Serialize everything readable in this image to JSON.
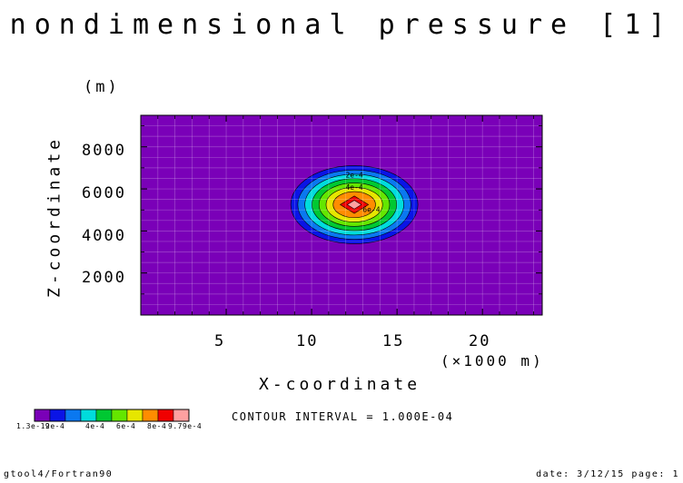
{
  "title": "nondimensional pressure [1]",
  "footer_left": "gtool4/Fortran90",
  "footer_right": "date: 3/12/15 page: 1",
  "contour_interval_text": "CONTOUR INTERVAL = 1.000E-04",
  "colorbar": {
    "labels": [
      "1.3e-19",
      "2e-4",
      "4e-4",
      "6e-4",
      "8e-4",
      "9.79e-4"
    ],
    "colors": [
      "#7a00b8",
      "#0a14e6",
      "#0a78f0",
      "#00dcdc",
      "#00c832",
      "#64e600",
      "#e6e600",
      "#ff8c00",
      "#f00000",
      "#ffa0a0"
    ]
  },
  "chart_data": {
    "type": "contour",
    "title": "nondimensional pressure [1]",
    "xlabel": "X-coordinate",
    "x_unit": "(×1000 m)",
    "ylabel": "Z-coordinate",
    "y_unit": "(m)",
    "xlim": [
      0,
      23.5
    ],
    "ylim": [
      0,
      9500
    ],
    "x_ticks": [
      5,
      10,
      15,
      20
    ],
    "y_ticks": [
      2000,
      4000,
      6000,
      8000
    ],
    "grid": true,
    "field_min": 1.3e-19,
    "field_max": 0.000979,
    "contour_interval": 0.0001,
    "center": {
      "x": 12.5,
      "z": 5250
    },
    "contour_labels": [
      {
        "text": "2e-4",
        "x": 12.5,
        "z": 6550
      },
      {
        "text": "4e-4",
        "x": 12.5,
        "z": 5950
      },
      {
        "text": "6e-4",
        "x": 13.5,
        "z": 4900
      }
    ],
    "background_color": "#7a00b8"
  }
}
